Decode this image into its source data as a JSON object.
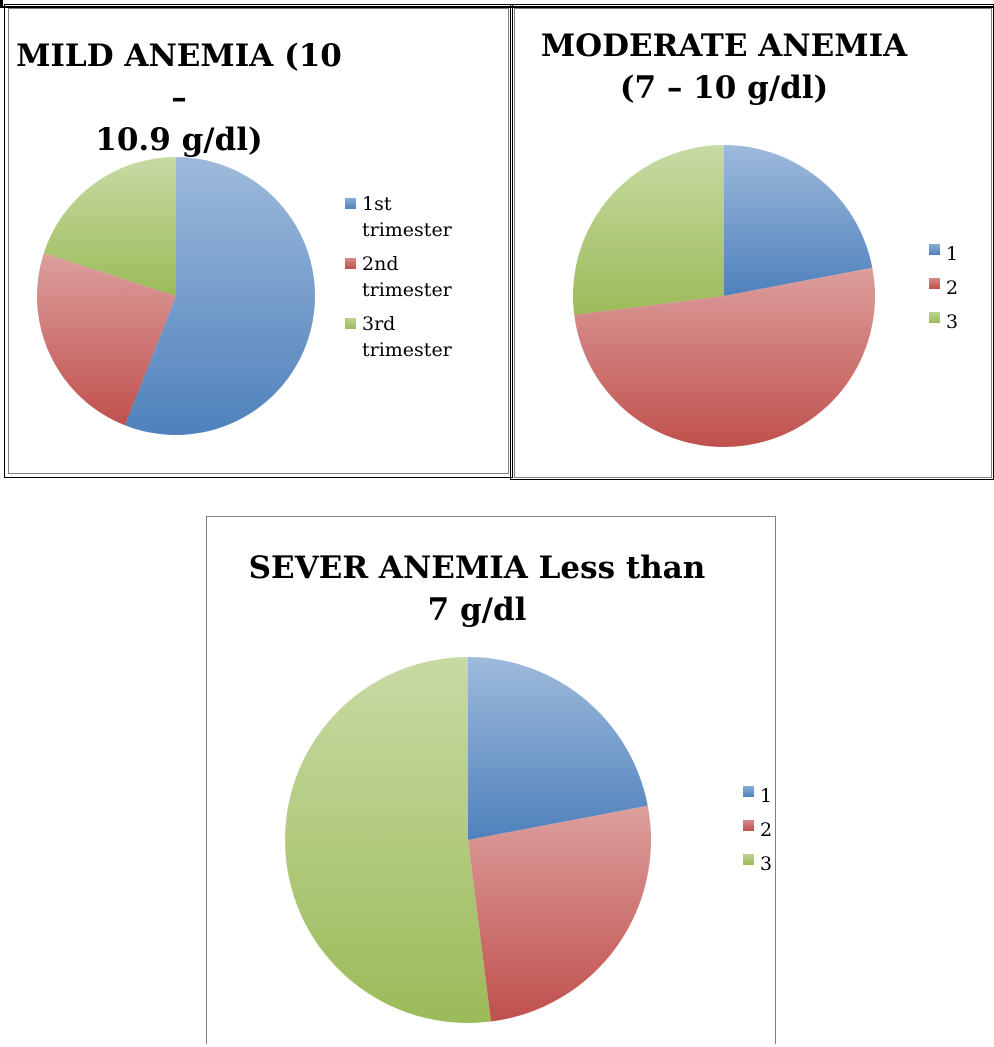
{
  "chart_data": [
    {
      "type": "pie",
      "title_line1": "MILD ANEMIA (10 –",
      "title_line2": "10.9 g/dl)",
      "labels": [
        "1st trimester",
        "2nd trimester",
        "3rd trimester"
      ],
      "legend_lines": [
        [
          "1st",
          "trimester"
        ],
        [
          "2nd",
          "trimester"
        ],
        [
          "3rd",
          "trimester"
        ]
      ],
      "values": [
        56,
        24,
        20
      ],
      "colors": [
        "#4f81bd",
        "#c0504d",
        "#9bbb59"
      ]
    },
    {
      "type": "pie",
      "title_line1": "MODERATE ANEMIA",
      "title_line2": "(7 – 10 g/dl)",
      "labels": [
        "1",
        "2",
        "3"
      ],
      "legend_lines": [
        [
          "1"
        ],
        [
          "2"
        ],
        [
          "3"
        ]
      ],
      "values": [
        22,
        51,
        27
      ],
      "colors": [
        "#4f81bd",
        "#c0504d",
        "#9bbb59"
      ]
    },
    {
      "type": "pie",
      "title_line1": "SEVER ANEMIA Less than",
      "title_line2": "7 g/dl",
      "labels": [
        "1",
        "2",
        "3"
      ],
      "legend_lines": [
        [
          "1"
        ],
        [
          "2"
        ],
        [
          "3"
        ]
      ],
      "values": [
        22,
        26,
        52
      ],
      "colors": [
        "#4f81bd",
        "#c0504d",
        "#9bbb59"
      ]
    }
  ]
}
